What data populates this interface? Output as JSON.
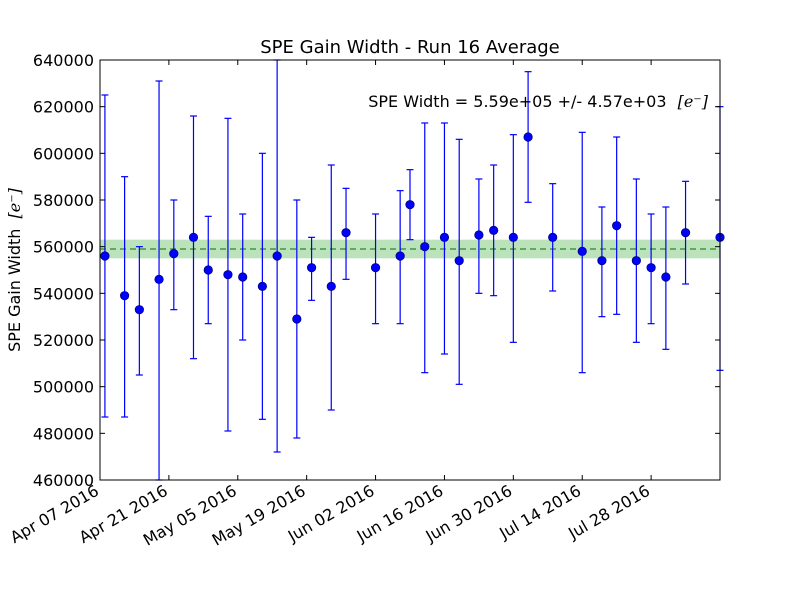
{
  "chart_data": {
    "type": "scatter",
    "title": "SPE Gain Width - Run 16 Average",
    "xlabel": "",
    "ylabel": "SPE Gain Width",
    "ylabel_unit": "[e⁻]",
    "ylim": [
      460000,
      640000
    ],
    "xlim": [
      "2016-04-07",
      "2016-08-11"
    ],
    "y_ticks": [
      460000,
      480000,
      500000,
      520000,
      540000,
      560000,
      580000,
      600000,
      620000,
      640000
    ],
    "x_ticks": [
      {
        "date": "2016-04-07",
        "label": "Apr 07 2016"
      },
      {
        "date": "2016-04-21",
        "label": "Apr 21 2016"
      },
      {
        "date": "2016-05-05",
        "label": "May 05 2016"
      },
      {
        "date": "2016-05-19",
        "label": "May 19 2016"
      },
      {
        "date": "2016-06-02",
        "label": "Jun 02 2016"
      },
      {
        "date": "2016-06-16",
        "label": "Jun 16 2016"
      },
      {
        "date": "2016-06-30",
        "label": "Jun 30 2016"
      },
      {
        "date": "2016-07-14",
        "label": "Jul 14 2016"
      },
      {
        "date": "2016-07-28",
        "label": "Jul 28 2016"
      }
    ],
    "grid": false,
    "average": {
      "value": 559000,
      "band": [
        555000,
        563000
      ],
      "line_style": "dashed",
      "line_color": "#228B22",
      "band_color": "#90cf90"
    },
    "annotation": "SPE Width = 5.59e+05 +/- 4.57e+03",
    "annotation_unit": "[e⁻]",
    "marker_color": "#0000ff",
    "points": [
      {
        "date": "2016-04-08",
        "y": 556000,
        "lo": 487000,
        "hi": 625000
      },
      {
        "date": "2016-04-12",
        "y": 539000,
        "lo": 487000,
        "hi": 590000
      },
      {
        "date": "2016-04-15",
        "y": 533000,
        "lo": 505000,
        "hi": 560000
      },
      {
        "date": "2016-04-19",
        "y": 546000,
        "lo": 460000,
        "hi": 631000
      },
      {
        "date": "2016-04-22",
        "y": 557000,
        "lo": 533000,
        "hi": 580000
      },
      {
        "date": "2016-04-26",
        "y": 564000,
        "lo": 512000,
        "hi": 616000
      },
      {
        "date": "2016-04-29",
        "y": 550000,
        "lo": 527000,
        "hi": 573000
      },
      {
        "date": "2016-05-03",
        "y": 548000,
        "lo": 481000,
        "hi": 615000
      },
      {
        "date": "2016-05-06",
        "y": 547000,
        "lo": 520000,
        "hi": 574000
      },
      {
        "date": "2016-05-10",
        "y": 543000,
        "lo": 486000,
        "hi": 600000
      },
      {
        "date": "2016-05-13",
        "y": 556000,
        "lo": 472000,
        "hi": 640000
      },
      {
        "date": "2016-05-17",
        "y": 529000,
        "lo": 478000,
        "hi": 580000
      },
      {
        "date": "2016-05-20",
        "y": 551000,
        "lo": 537000,
        "hi": 564000
      },
      {
        "date": "2016-05-24",
        "y": 543000,
        "lo": 490000,
        "hi": 595000
      },
      {
        "date": "2016-05-27",
        "y": 566000,
        "lo": 546000,
        "hi": 585000
      },
      {
        "date": "2016-06-02",
        "y": 551000,
        "lo": 527000,
        "hi": 574000
      },
      {
        "date": "2016-06-07",
        "y": 556000,
        "lo": 527000,
        "hi": 584000
      },
      {
        "date": "2016-06-09",
        "y": 578000,
        "lo": 563000,
        "hi": 593000
      },
      {
        "date": "2016-06-12",
        "y": 560000,
        "lo": 506000,
        "hi": 613000
      },
      {
        "date": "2016-06-16",
        "y": 564000,
        "lo": 514000,
        "hi": 613000
      },
      {
        "date": "2016-06-19",
        "y": 554000,
        "lo": 501000,
        "hi": 606000
      },
      {
        "date": "2016-06-23",
        "y": 565000,
        "lo": 540000,
        "hi": 589000
      },
      {
        "date": "2016-06-26",
        "y": 567000,
        "lo": 539000,
        "hi": 595000
      },
      {
        "date": "2016-06-30",
        "y": 564000,
        "lo": 519000,
        "hi": 608000
      },
      {
        "date": "2016-07-03",
        "y": 607000,
        "lo": 579000,
        "hi": 635000
      },
      {
        "date": "2016-07-08",
        "y": 564000,
        "lo": 541000,
        "hi": 587000
      },
      {
        "date": "2016-07-14",
        "y": 558000,
        "lo": 506000,
        "hi": 609000
      },
      {
        "date": "2016-07-18",
        "y": 554000,
        "lo": 530000,
        "hi": 577000
      },
      {
        "date": "2016-07-21",
        "y": 569000,
        "lo": 531000,
        "hi": 607000
      },
      {
        "date": "2016-07-25",
        "y": 554000,
        "lo": 519000,
        "hi": 589000
      },
      {
        "date": "2016-07-28",
        "y": 551000,
        "lo": 527000,
        "hi": 574000
      },
      {
        "date": "2016-07-31",
        "y": 547000,
        "lo": 516000,
        "hi": 577000
      },
      {
        "date": "2016-08-04",
        "y": 566000,
        "lo": 544000,
        "hi": 588000
      },
      {
        "date": "2016-08-11",
        "y": 564000,
        "lo": 507000,
        "hi": 620000
      }
    ]
  }
}
